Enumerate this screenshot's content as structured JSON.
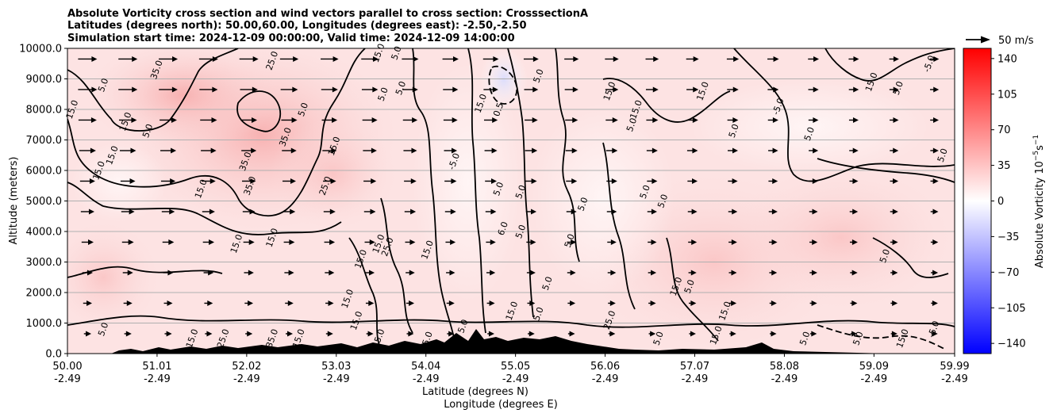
{
  "chart_data": {
    "type": "contour",
    "title_lines": [
      "Absolute Vorticity cross section and wind vectors parallel to cross section: CrosssectionA",
      "Latitudes (degrees north): 50.00,60.00, Longitudes (degrees east): -2.50,-2.50",
      "Simulation start time: 2024-12-09 00:00:00, Valid time: 2024-12-09 14:00:00"
    ],
    "ylabel": "Altitude (meters)",
    "xlabel_line1": "Latitude (degrees N)",
    "xlabel_line2": "Longitude (degrees E)",
    "ylim": [
      0,
      10000
    ],
    "y_ticks": [
      "0.0",
      "1000.0",
      "2000.0",
      "3000.0",
      "4000.0",
      "5000.0",
      "6000.0",
      "7000.0",
      "8000.0",
      "9000.0",
      "10000.0"
    ],
    "x_ticks": [
      {
        "lat": "50.00",
        "lon": "-2.49"
      },
      {
        "lat": "51.01",
        "lon": "-2.49"
      },
      {
        "lat": "52.02",
        "lon": "-2.49"
      },
      {
        "lat": "53.03",
        "lon": "-2.49"
      },
      {
        "lat": "54.04",
        "lon": "-2.49"
      },
      {
        "lat": "55.05",
        "lon": "-2.49"
      },
      {
        "lat": "56.06",
        "lon": "-2.49"
      },
      {
        "lat": "57.07",
        "lon": "-2.49"
      },
      {
        "lat": "58.08",
        "lon": "-2.49"
      },
      {
        "lat": "59.09",
        "lon": "-2.49"
      },
      {
        "lat": "59.99",
        "lon": "-2.49"
      }
    ],
    "grid": "horizontal",
    "quiver_key": "50 m/s",
    "colorbar": {
      "label": "Absolute Vorticity 10$^{-5}$s$^{-1}$",
      "label_main": "Absolute Vorticity 10",
      "label_exp1": "−5",
      "label_s": "s",
      "label_exp2": "−1",
      "ticks": [
        "140",
        "105",
        "70",
        "35",
        "0",
        "−35",
        "−70",
        "−105",
        "−140"
      ],
      "range": [
        -150,
        150
      ],
      "colormap": "bwr"
    },
    "contour_labels": [
      {
        "t": "15.0",
        "lat": 53.5,
        "alt": 9850
      },
      {
        "t": "5.0",
        "lat": 53.7,
        "alt": 9850
      },
      {
        "t": "25.0",
        "lat": 52.3,
        "alt": 9600
      },
      {
        "t": "35.0",
        "lat": 51.0,
        "alt": 9300
      },
      {
        "t": "5.0",
        "lat": 50.4,
        "alt": 8800
      },
      {
        "t": "15.0",
        "lat": 50.05,
        "alt": 8000
      },
      {
        "t": "15.0",
        "lat": 50.65,
        "alt": 7600
      },
      {
        "t": "5.0",
        "lat": 50.9,
        "alt": 7300
      },
      {
        "t": "15.0",
        "lat": 50.5,
        "alt": 6500
      },
      {
        "t": "15.0",
        "lat": 50.35,
        "alt": 6000
      },
      {
        "t": "35.0",
        "lat": 52.45,
        "alt": 7100
      },
      {
        "t": "5.0",
        "lat": 52.65,
        "alt": 8000
      },
      {
        "t": "35.0",
        "lat": 52.0,
        "alt": 6300
      },
      {
        "t": "35.0",
        "lat": 52.05,
        "alt": 5500
      },
      {
        "t": "15.0",
        "lat": 51.5,
        "alt": 5400
      },
      {
        "t": "25.0",
        "lat": 52.9,
        "alt": 5500
      },
      {
        "t": "15.0",
        "lat": 53.0,
        "alt": 6800
      },
      {
        "t": "5.0",
        "lat": 53.75,
        "alt": 8700
      },
      {
        "t": "5.0",
        "lat": 53.55,
        "alt": 8500
      },
      {
        "t": "15.0",
        "lat": 54.65,
        "alt": 8200
      },
      {
        "t": "0.5",
        "lat": 54.85,
        "alt": 8000
      },
      {
        "t": "5.0",
        "lat": 55.3,
        "alt": 9100
      },
      {
        "t": "15.0",
        "lat": 56.1,
        "alt": 8600
      },
      {
        "t": "15.0",
        "lat": 56.4,
        "alt": 8000
      },
      {
        "t": "5.0",
        "lat": 56.35,
        "alt": 7500
      },
      {
        "t": "15.0",
        "lat": 57.15,
        "alt": 8600
      },
      {
        "t": "5.0",
        "lat": 57.5,
        "alt": 7300
      },
      {
        "t": "-5.0",
        "lat": 58.0,
        "alt": 8100
      },
      {
        "t": "5.0",
        "lat": 58.35,
        "alt": 7200
      },
      {
        "t": "5.0",
        "lat": 59.85,
        "alt": 6500
      },
      {
        "t": "-5.0",
        "lat": 54.35,
        "alt": 6300
      },
      {
        "t": "5.0",
        "lat": 54.85,
        "alt": 5400
      },
      {
        "t": "5.0",
        "lat": 55.1,
        "alt": 5300
      },
      {
        "t": "5.0",
        "lat": 56.5,
        "alt": 5300
      },
      {
        "t": "5.0",
        "lat": 56.7,
        "alt": 5000
      },
      {
        "t": "5.0",
        "lat": 55.8,
        "alt": 4900
      },
      {
        "t": "6.0",
        "lat": 54.9,
        "alt": 4100
      },
      {
        "t": "5.0",
        "lat": 55.1,
        "alt": 4000
      },
      {
        "t": "15.0",
        "lat": 53.5,
        "alt": 3600
      },
      {
        "t": "15.0",
        "lat": 54.05,
        "alt": 3400
      },
      {
        "t": "15.0",
        "lat": 53.3,
        "alt": 3100
      },
      {
        "t": "25.0",
        "lat": 53.6,
        "alt": 3500
      },
      {
        "t": "15.0",
        "lat": 52.3,
        "alt": 3800
      },
      {
        "t": "15.0",
        "lat": 51.9,
        "alt": 3600
      },
      {
        "t": "5.0",
        "lat": 55.65,
        "alt": 3700
      },
      {
        "t": "5.0",
        "lat": 59.2,
        "alt": 3200
      },
      {
        "t": "5.0",
        "lat": 55.4,
        "alt": 2300
      },
      {
        "t": "5.0",
        "lat": 57.0,
        "alt": 2200
      },
      {
        "t": "15.0",
        "lat": 56.85,
        "alt": 2200
      },
      {
        "t": "15.0",
        "lat": 53.15,
        "alt": 1800
      },
      {
        "t": "15.0",
        "lat": 53.25,
        "alt": 1080
      },
      {
        "t": "15.0",
        "lat": 55.0,
        "alt": 1400
      },
      {
        "t": "5.0",
        "lat": 54.45,
        "alt": 900
      },
      {
        "t": "5.0",
        "lat": 55.3,
        "alt": 1300
      },
      {
        "t": "25.0",
        "lat": 56.1,
        "alt": 1100
      },
      {
        "t": "15.0",
        "lat": 57.4,
        "alt": 1400
      },
      {
        "t": "5.0",
        "lat": 50.4,
        "alt": 800
      },
      {
        "t": "15.0",
        "lat": 51.4,
        "alt": 500
      },
      {
        "t": "25.0",
        "lat": 51.75,
        "alt": 500
      },
      {
        "t": "35.0",
        "lat": 52.3,
        "alt": 500
      },
      {
        "t": "15.0",
        "lat": 52.6,
        "alt": 500
      },
      {
        "t": "15.0",
        "lat": 53.5,
        "alt": 500
      },
      {
        "t": "5.0",
        "lat": 54.05,
        "alt": 500
      },
      {
        "t": "5.0",
        "lat": 56.65,
        "alt": 500
      },
      {
        "t": "15.0",
        "lat": 57.3,
        "alt": 600
      },
      {
        "t": "5.0",
        "lat": 58.3,
        "alt": 500
      },
      {
        "t": "5.0",
        "lat": 58.9,
        "alt": 500
      },
      {
        "t": "15.0",
        "lat": 59.4,
        "alt": 500
      },
      {
        "t": "15.0",
        "lat": 59.05,
        "alt": 8900
      },
      {
        "t": "5.0",
        "lat": 59.35,
        "alt": 8700
      },
      {
        "t": "-5.0",
        "lat": 59.7,
        "alt": 9500
      },
      {
        "t": "-5.0",
        "lat": 59.75,
        "alt": 800
      }
    ]
  }
}
